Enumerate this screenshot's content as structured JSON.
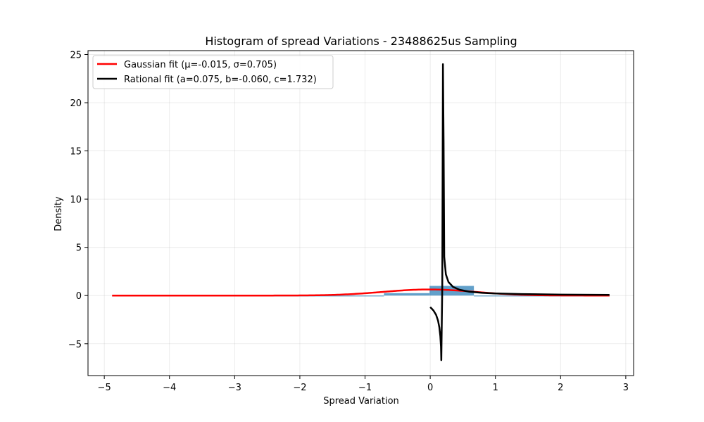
{
  "chart_data": {
    "type": "line",
    "title": "Histogram of spread Variations - 23488625us Sampling",
    "xlabel": "Spread Variation",
    "ylabel": "Density",
    "xlim": [
      -5.25,
      3.12
    ],
    "ylim": [
      -8.3,
      25.4
    ],
    "x_ticks": [
      -5,
      -4,
      -3,
      -2,
      -1,
      0,
      1,
      2,
      3
    ],
    "x_tick_labels": [
      "−5",
      "−4",
      "−3",
      "−2",
      "−1",
      "0",
      "1",
      "2",
      "3"
    ],
    "y_ticks": [
      -5,
      0,
      5,
      10,
      15,
      20,
      25
    ],
    "y_tick_labels": [
      "−5",
      "0",
      "5",
      "10",
      "15",
      "20",
      "25"
    ],
    "grid": true,
    "legend_position": "upper-left",
    "histogram": {
      "color": "#1f77b4",
      "bins": [
        {
          "x0": -4.88,
          "x1": -0.71,
          "value": 0.0
        },
        {
          "x0": -0.71,
          "x1": -0.01,
          "value": 0.25
        },
        {
          "x0": -0.01,
          "x1": 0.67,
          "value": 1.0
        },
        {
          "x0": 0.67,
          "x1": 2.75,
          "value": 0.0
        }
      ]
    },
    "gaussian": {
      "name": "Gaussian fit (μ=-0.015, σ=0.705)",
      "color": "#ff0000",
      "mu": -0.015,
      "sigma": 0.705,
      "scale": 0.63,
      "x_range": [
        -4.88,
        2.75
      ]
    },
    "rational": {
      "name": "Rational fit (a=0.075, b=-0.060, c=1.732)",
      "color": "#000000",
      "left_branch": [
        {
          "x": 0.0,
          "y": -1.2
        },
        {
          "x": 0.05,
          "y": -1.55
        },
        {
          "x": 0.09,
          "y": -2.0
        },
        {
          "x": 0.12,
          "y": -2.6
        },
        {
          "x": 0.14,
          "y": -3.3
        },
        {
          "x": 0.155,
          "y": -4.2
        },
        {
          "x": 0.165,
          "y": -5.3
        },
        {
          "x": 0.17,
          "y": -6.7
        }
      ],
      "right_branch": [
        {
          "x": 0.17,
          "y": -6.7
        },
        {
          "x": 0.185,
          "y": 1.0
        },
        {
          "x": 0.195,
          "y": 24.0
        },
        {
          "x": 0.205,
          "y": 16.0
        },
        {
          "x": 0.215,
          "y": 4.0
        },
        {
          "x": 0.24,
          "y": 2.2
        },
        {
          "x": 0.28,
          "y": 1.4
        },
        {
          "x": 0.35,
          "y": 0.9
        },
        {
          "x": 0.45,
          "y": 0.6
        },
        {
          "x": 0.6,
          "y": 0.4
        },
        {
          "x": 0.8,
          "y": 0.28
        },
        {
          "x": 1.0,
          "y": 0.22
        },
        {
          "x": 1.4,
          "y": 0.15
        },
        {
          "x": 2.0,
          "y": 0.1
        },
        {
          "x": 2.75,
          "y": 0.07
        }
      ]
    }
  }
}
